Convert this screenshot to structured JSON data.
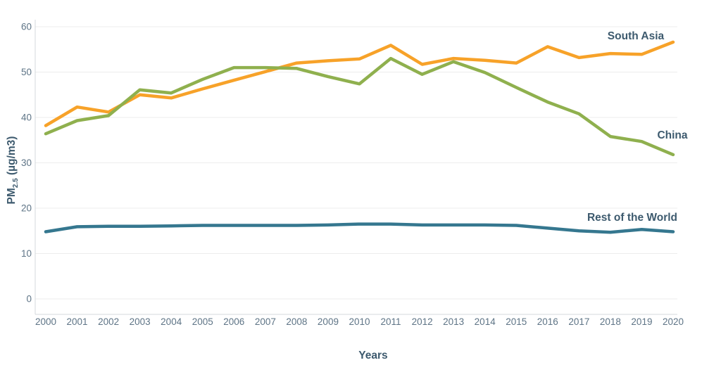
{
  "page": {
    "background": "#FFFFFF"
  },
  "colors": {
    "label_text": "#3D5A6E",
    "tick_text": "#5E7486",
    "gridline": "#EDEDED",
    "axis_line": "#D5D9DC"
  },
  "chart_data": {
    "type": "line",
    "title": "",
    "xlabel": "Years",
    "ylabel": "PM2.5 (µg/m3)",
    "ylabel_parts": {
      "main": "PM",
      "sub": "2.5",
      "rest": " (µg/m3)"
    },
    "x": [
      2000,
      2001,
      2002,
      2003,
      2004,
      2005,
      2006,
      2007,
      2008,
      2009,
      2010,
      2011,
      2012,
      2013,
      2014,
      2015,
      2016,
      2017,
      2018,
      2019,
      2020
    ],
    "xlim": [
      2000,
      2020
    ],
    "ylim": [
      0,
      60
    ],
    "yticks": [
      0,
      10,
      20,
      30,
      40,
      50,
      60
    ],
    "grid": true,
    "legend_position": "inline-right-labels",
    "series": [
      {
        "name": "South Asia",
        "color": "#F7A229",
        "values": [
          38.2,
          42.3,
          41.2,
          45.0,
          44.3,
          46.3,
          48.2,
          50.1,
          52.0,
          52.5,
          52.9,
          55.9,
          51.7,
          53.0,
          52.6,
          52.0,
          55.6,
          53.2,
          54.1,
          53.9,
          56.6
        ]
      },
      {
        "name": "China",
        "color": "#8FB04E",
        "values": [
          36.4,
          39.3,
          40.4,
          46.1,
          45.4,
          48.4,
          51.0,
          51.0,
          50.8,
          49.0,
          47.4,
          53.0,
          49.5,
          52.3,
          49.9,
          46.6,
          43.4,
          40.8,
          35.8,
          34.7,
          31.8
        ]
      },
      {
        "name": "Rest of the World",
        "color": "#35778F",
        "values": [
          14.8,
          15.9,
          16.0,
          16.0,
          16.1,
          16.2,
          16.2,
          16.2,
          16.2,
          16.3,
          16.5,
          16.5,
          16.3,
          16.3,
          16.3,
          16.2,
          15.6,
          15.0,
          14.7,
          15.3,
          14.8
        ]
      }
    ]
  }
}
